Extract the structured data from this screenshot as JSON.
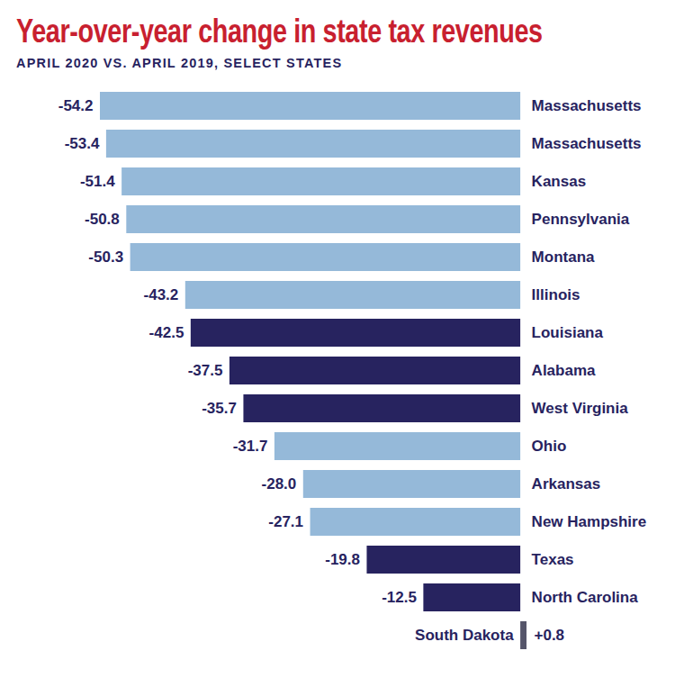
{
  "chart_data": {
    "type": "bar",
    "orientation": "horizontal",
    "title": "Year-over-year change in state tax revenues",
    "subtitle": "APRIL 2020 VS. APRIL 2019, SELECT STATES",
    "categories": [
      "Massachusetts",
      "Massachusetts",
      "Kansas",
      "Pennsylvania",
      "Montana",
      "Illinois",
      "Louisiana",
      "Alabama",
      "West Virginia",
      "Ohio",
      "Arkansas",
      "New Hampshire",
      "Texas",
      "North Carolina",
      "South Dakota"
    ],
    "values": [
      -54.2,
      -53.4,
      -51.4,
      -50.8,
      -50.3,
      -43.2,
      -42.5,
      -37.5,
      -35.7,
      -31.7,
      -28.0,
      -27.1,
      -19.8,
      -12.5,
      0.8
    ],
    "value_labels": [
      "-54.2",
      "-53.4",
      "-51.4",
      "-50.8",
      "-50.3",
      "-43.2",
      "-42.5",
      "-37.5",
      "-35.7",
      "-31.7",
      "-28.0",
      "-27.1",
      "-19.8",
      "-12.5",
      "+0.8"
    ],
    "colors": [
      "#95b9d9",
      "#95b9d9",
      "#95b9d9",
      "#95b9d9",
      "#95b9d9",
      "#95b9d9",
      "#27235f",
      "#27235f",
      "#27235f",
      "#95b9d9",
      "#95b9d9",
      "#95b9d9",
      "#27235f",
      "#27235f",
      "#55556a"
    ],
    "xlim": [
      -54.2,
      0.8
    ],
    "data_labels": true,
    "tick_labels": false,
    "grid": false
  }
}
